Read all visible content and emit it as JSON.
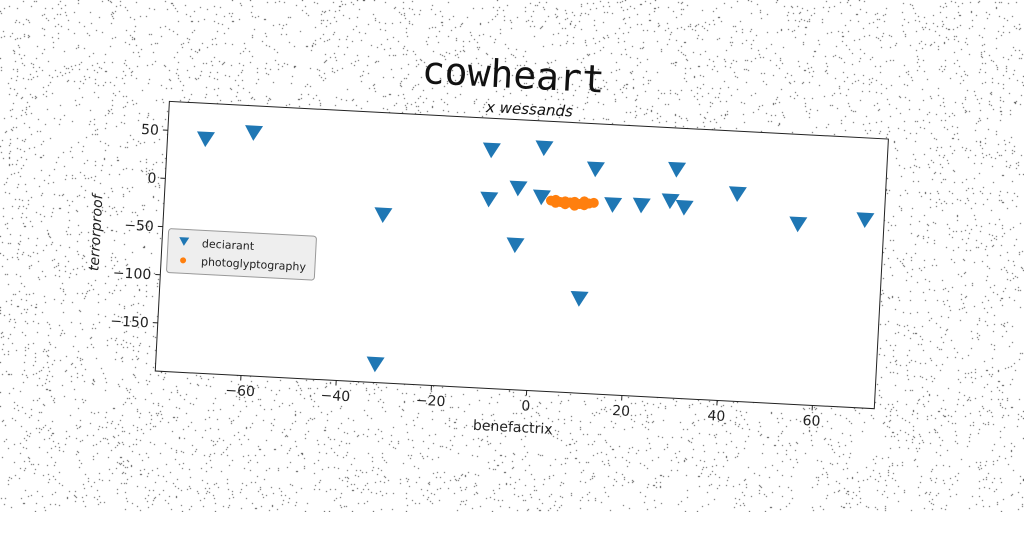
{
  "title": "cowheart",
  "chart_data": {
    "type": "scatter",
    "subtitle": "x wessands",
    "xlabel": "benefactrix",
    "ylabel": "terrorproof",
    "xlim": [
      -78,
      73
    ],
    "ylim": [
      -200,
      80
    ],
    "xticks": [
      -60,
      -40,
      -20,
      0,
      20,
      40,
      60
    ],
    "yticks": [
      50,
      0,
      -50,
      -100,
      -150
    ],
    "grid": false,
    "legend_position": "center-left",
    "series": [
      {
        "name": "deciarant",
        "marker": "triangle-down",
        "color": "#1f77b4",
        "points": [
          [
            -70,
            43
          ],
          [
            -60,
            52
          ],
          [
            -10,
            47
          ],
          [
            1,
            52
          ],
          [
            12,
            33
          ],
          [
            29,
            37
          ],
          [
            -32,
            -26
          ],
          [
            -4,
            9
          ],
          [
            -10,
            -4
          ],
          [
            1,
            1
          ],
          [
            16,
            -3
          ],
          [
            22,
            -2
          ],
          [
            28,
            4
          ],
          [
            31,
            -2
          ],
          [
            42,
            15
          ],
          [
            55,
            -13
          ],
          [
            69,
            -5
          ],
          [
            -4,
            -50
          ],
          [
            10,
            -102
          ],
          [
            -32,
            -181
          ]
        ]
      },
      {
        "name": "photoglyptography",
        "marker": "circle",
        "color": "#ff7f0e",
        "points": [
          [
            3,
            -2
          ],
          [
            4,
            -4
          ],
          [
            5,
            -3
          ],
          [
            6,
            -5
          ],
          [
            7,
            -3
          ],
          [
            8,
            -6
          ],
          [
            9,
            -4
          ],
          [
            10,
            -5
          ],
          [
            11,
            -3
          ],
          [
            12,
            -2
          ],
          [
            6,
            -2
          ],
          [
            8,
            -2
          ],
          [
            10,
            -1
          ],
          [
            4,
            -1
          ]
        ]
      }
    ]
  }
}
